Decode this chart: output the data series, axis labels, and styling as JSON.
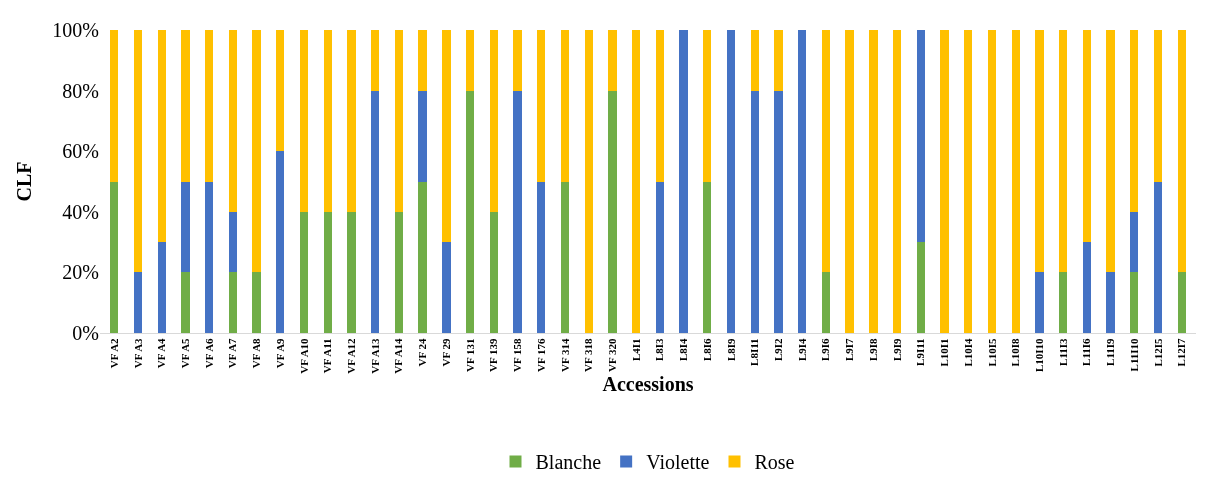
{
  "chart_data": {
    "type": "bar",
    "stacked": true,
    "xlabel": "Accessions",
    "ylabel": "CLF",
    "categories": [
      "VF A2",
      "VF A3",
      "VF A4",
      "VF A5",
      "VF A6",
      "VF A7",
      "VF A8",
      "VF A9",
      "VF A10",
      "VF A11",
      "VF A12",
      "VF A13",
      "VF A14",
      "VF 24",
      "VF 29",
      "VF 131",
      "VF 139",
      "VF 158",
      "VF 176",
      "VF 314",
      "VF 318",
      "VF 320",
      "L4I1",
      "L8I3",
      "L8I4",
      "L8I6",
      "L8I9",
      "L8I11",
      "L9I2",
      "L9I4",
      "L9I6",
      "L9I7",
      "L9I8",
      "L9I9",
      "L9I11",
      "L10I1",
      "L10I4",
      "L10I5",
      "L10I8",
      "L10I10",
      "L11I3",
      "L11I6",
      "L11I9",
      "L11I10",
      "L12I5",
      "L12I7"
    ],
    "series": [
      {
        "name": "Blanche",
        "color": "#70ad47",
        "values": [
          50,
          0,
          0,
          20,
          0,
          20,
          20,
          0,
          40,
          40,
          40,
          0,
          40,
          50,
          0,
          80,
          40,
          0,
          0,
          50,
          0,
          80,
          0,
          0,
          0,
          50,
          0,
          0,
          0,
          0,
          20,
          0,
          0,
          0,
          30,
          0,
          0,
          0,
          0,
          0,
          20,
          0,
          0,
          20,
          0,
          20
        ]
      },
      {
        "name": "Violette",
        "color": "#4472c4",
        "values": [
          0,
          20,
          30,
          30,
          50,
          20,
          0,
          60,
          0,
          0,
          0,
          80,
          0,
          30,
          30,
          0,
          0,
          80,
          50,
          0,
          0,
          0,
          0,
          50,
          100,
          0,
          100,
          80,
          80,
          100,
          0,
          0,
          0,
          0,
          70,
          0,
          0,
          0,
          0,
          20,
          0,
          30,
          20,
          20,
          50,
          0
        ]
      },
      {
        "name": "Rose",
        "color": "#ffc000",
        "values": [
          50,
          80,
          70,
          50,
          50,
          60,
          80,
          40,
          60,
          60,
          60,
          20,
          60,
          20,
          70,
          20,
          60,
          20,
          50,
          50,
          100,
          20,
          100,
          50,
          0,
          50,
          0,
          20,
          20,
          0,
          80,
          100,
          100,
          100,
          0,
          100,
          100,
          100,
          100,
          80,
          80,
          70,
          80,
          60,
          50,
          80
        ]
      }
    ],
    "ylim": [
      0,
      100
    ],
    "yticks": [
      {
        "value": 0,
        "label": "0%"
      },
      {
        "value": 20,
        "label": "20%"
      },
      {
        "value": 40,
        "label": "40%"
      },
      {
        "value": 60,
        "label": "60%"
      },
      {
        "value": 80,
        "label": "80%"
      },
      {
        "value": 100,
        "label": "100%"
      }
    ],
    "legend": "bottom"
  }
}
